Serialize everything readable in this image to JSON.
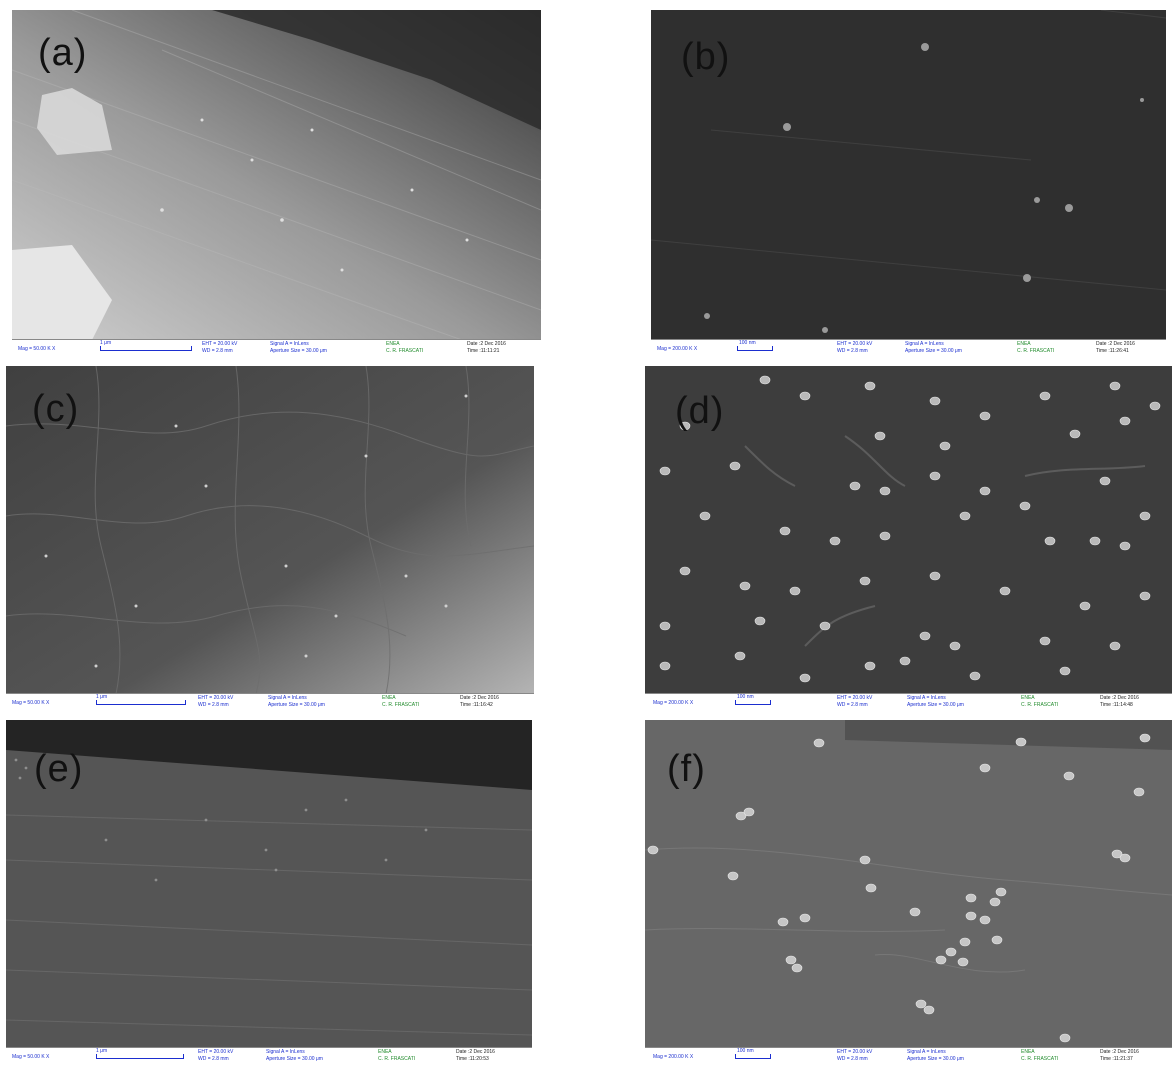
{
  "panels": [
    {
      "label": "(a)",
      "bar": {
        "mag": "Mag = 50.00 K X",
        "scale": "1 μm",
        "eht": "EHT = 20.00 kV",
        "wd": "WD = 2.8 mm",
        "signal": "Signal A = InLens",
        "aperture": "Aperture Size = 30.00 μm",
        "org1": "ENEA",
        "org2": "C. R. FRASCATI",
        "date": "Date :2 Dec 2016",
        "time": "Time :11:11:21"
      }
    },
    {
      "label": "(b)",
      "bar": {
        "mag": "Mag = 200.00 K X",
        "scale": "100 nm",
        "eht": "EHT = 20.00 kV",
        "wd": "WD = 2.8 mm",
        "signal": "Signal A = InLens",
        "aperture": "Aperture Size = 30.00 μm",
        "org1": "ENEA",
        "org2": "C. R. FRASCATI",
        "date": "Date :2 Dec 2016",
        "time": "Time :11:26:41"
      }
    },
    {
      "label": "(c)",
      "bar": {
        "mag": "Mag = 50.00 K X",
        "scale": "1 μm",
        "eht": "EHT = 20.00 kV",
        "wd": "WD = 2.8 mm",
        "signal": "Signal A = InLens",
        "aperture": "Aperture Size = 30.00 μm",
        "org1": "ENEA",
        "org2": "C. R. FRASCATI",
        "date": "Date :2 Dec 2016",
        "time": "Time :11:16:42"
      }
    },
    {
      "label": "(d)",
      "bar": {
        "mag": "Mag = 200.00 K X",
        "scale": "100 nm",
        "eht": "EHT = 20.00 kV",
        "wd": "WD = 2.8 mm",
        "signal": "Signal A = InLens",
        "aperture": "Aperture Size = 30.00 μm",
        "org1": "ENEA",
        "org2": "C. R. FRASCATI",
        "date": "Date :2 Dec 2016",
        "time": "Time :11:14:48"
      }
    },
    {
      "label": "(e)",
      "bar": {
        "mag": "Mag = 50.00 K X",
        "scale": "1 μm",
        "eht": "EHT = 20.00 kV",
        "wd": "WD = 2.8 mm",
        "signal": "Signal A = InLens",
        "aperture": "Aperture Size = 30.00 μm",
        "org1": "ENEA",
        "org2": "C. R. FRASCATI",
        "date": "Date :2 Dec 2016",
        "time": "Time :11:20:53"
      }
    },
    {
      "label": "(f)",
      "bar": {
        "mag": "Mag = 200.00 K X",
        "scale": "100 nm",
        "eht": "EHT = 20.00 kV",
        "wd": "WD = 2.8 mm",
        "signal": "Signal A = InLens",
        "aperture": "Aperture Size = 30.00 μm",
        "org1": "ENEA",
        "org2": "C. R. FRASCATI",
        "date": "Date :2 Dec 2016",
        "time": "Time :11:21:37"
      }
    }
  ]
}
